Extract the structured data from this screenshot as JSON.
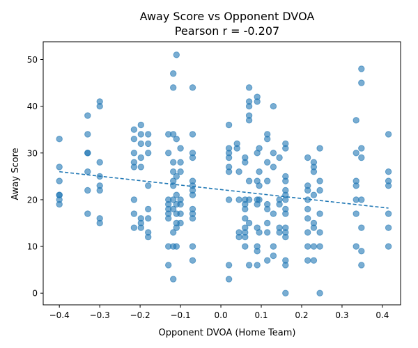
{
  "chart_data": {
    "type": "scatter",
    "title": "Away Score vs Opponent DVOA",
    "subtitle": "Pearson r = -0.207",
    "xlabel": "Opponent DVOA (Home Team)",
    "ylabel": "Away Score",
    "xlim": [
      -0.44,
      0.445
    ],
    "ylim": [
      -2.5,
      53.8
    ],
    "x_ticks": [
      -0.4,
      -0.3,
      -0.2,
      -0.1,
      0.0,
      0.1,
      0.2,
      0.3,
      0.4
    ],
    "x_tick_labels": [
      "−0.4",
      "−0.3",
      "−0.2",
      "−0.1",
      "0.0",
      "0.1",
      "0.2",
      "0.3",
      "0.4"
    ],
    "y_ticks": [
      0,
      10,
      20,
      30,
      40,
      50
    ],
    "y_tick_labels": [
      "0",
      "10",
      "20",
      "30",
      "40",
      "50"
    ],
    "grid": false,
    "colors": {
      "points": "#1f77b4",
      "trendline": "#1f77b4"
    },
    "series": [
      {
        "points": [
          [
            -0.4,
            33
          ],
          [
            -0.4,
            27
          ],
          [
            -0.4,
            24
          ],
          [
            -0.4,
            21
          ],
          [
            -0.4,
            21
          ],
          [
            -0.4,
            20
          ],
          [
            -0.4,
            19
          ],
          [
            -0.33,
            38
          ],
          [
            -0.33,
            34
          ],
          [
            -0.33,
            30
          ],
          [
            -0.33,
            30
          ],
          [
            -0.33,
            26
          ],
          [
            -0.33,
            22
          ],
          [
            -0.33,
            17
          ],
          [
            -0.3,
            41
          ],
          [
            -0.3,
            40
          ],
          [
            -0.3,
            28
          ],
          [
            -0.3,
            25
          ],
          [
            -0.3,
            23
          ],
          [
            -0.3,
            22
          ],
          [
            -0.3,
            16
          ],
          [
            -0.3,
            15
          ],
          [
            -0.215,
            35
          ],
          [
            -0.215,
            33
          ],
          [
            -0.215,
            30
          ],
          [
            -0.215,
            28
          ],
          [
            -0.215,
            27
          ],
          [
            -0.215,
            20
          ],
          [
            -0.215,
            17
          ],
          [
            -0.215,
            14
          ],
          [
            -0.198,
            36
          ],
          [
            -0.198,
            34
          ],
          [
            -0.198,
            32
          ],
          [
            -0.198,
            29
          ],
          [
            -0.198,
            27
          ],
          [
            -0.198,
            16
          ],
          [
            -0.198,
            15
          ],
          [
            -0.198,
            14
          ],
          [
            -0.18,
            34
          ],
          [
            -0.18,
            32
          ],
          [
            -0.18,
            30
          ],
          [
            -0.18,
            23
          ],
          [
            -0.18,
            18
          ],
          [
            -0.18,
            16
          ],
          [
            -0.18,
            13
          ],
          [
            -0.18,
            12
          ],
          [
            -0.13,
            34
          ],
          [
            -0.13,
            30
          ],
          [
            -0.13,
            20
          ],
          [
            -0.13,
            19
          ],
          [
            -0.13,
            18
          ],
          [
            -0.13,
            17
          ],
          [
            -0.13,
            16
          ],
          [
            -0.13,
            10
          ],
          [
            -0.13,
            6
          ],
          [
            -0.118,
            47
          ],
          [
            -0.118,
            44
          ],
          [
            -0.118,
            34
          ],
          [
            -0.118,
            28
          ],
          [
            -0.118,
            26
          ],
          [
            -0.118,
            24
          ],
          [
            -0.118,
            23
          ],
          [
            -0.118,
            20
          ],
          [
            -0.118,
            18
          ],
          [
            -0.118,
            13
          ],
          [
            -0.118,
            10
          ],
          [
            -0.118,
            3
          ],
          [
            -0.11,
            51
          ],
          [
            -0.11,
            33
          ],
          [
            -0.11,
            25
          ],
          [
            -0.11,
            21
          ],
          [
            -0.11,
            19
          ],
          [
            -0.11,
            17
          ],
          [
            -0.11,
            15
          ],
          [
            -0.11,
            14
          ],
          [
            -0.11,
            10
          ],
          [
            -0.1,
            31
          ],
          [
            -0.1,
            28
          ],
          [
            -0.1,
            26
          ],
          [
            -0.1,
            20
          ],
          [
            -0.1,
            19
          ],
          [
            -0.1,
            17
          ],
          [
            -0.1,
            15
          ],
          [
            -0.07,
            44
          ],
          [
            -0.07,
            34
          ],
          [
            -0.07,
            30
          ],
          [
            -0.07,
            29
          ],
          [
            -0.07,
            24
          ],
          [
            -0.07,
            23
          ],
          [
            -0.07,
            22
          ],
          [
            -0.07,
            21
          ],
          [
            -0.07,
            18
          ],
          [
            -0.07,
            17
          ],
          [
            -0.07,
            16
          ],
          [
            -0.07,
            10
          ],
          [
            -0.07,
            7
          ],
          [
            0.02,
            36
          ],
          [
            0.02,
            31
          ],
          [
            0.02,
            30
          ],
          [
            0.02,
            29
          ],
          [
            0.02,
            27
          ],
          [
            0.02,
            26
          ],
          [
            0.02,
            20
          ],
          [
            0.02,
            6
          ],
          [
            0.02,
            3
          ],
          [
            0.04,
            32
          ],
          [
            0.04,
            31
          ],
          [
            0.045,
            26
          ],
          [
            0.045,
            20
          ],
          [
            0.045,
            13
          ],
          [
            0.045,
            12
          ],
          [
            0.06,
            29
          ],
          [
            0.06,
            28
          ],
          [
            0.06,
            20
          ],
          [
            0.06,
            19
          ],
          [
            0.06,
            18
          ],
          [
            0.06,
            16
          ],
          [
            0.06,
            14
          ],
          [
            0.06,
            13
          ],
          [
            0.06,
            12
          ],
          [
            0.06,
            10
          ],
          [
            0.07,
            44
          ],
          [
            0.07,
            41
          ],
          [
            0.07,
            40
          ],
          [
            0.07,
            38
          ],
          [
            0.07,
            37
          ],
          [
            0.07,
            24
          ],
          [
            0.07,
            20
          ],
          [
            0.07,
            15
          ],
          [
            0.07,
            6
          ],
          [
            0.09,
            42
          ],
          [
            0.09,
            41
          ],
          [
            0.09,
            30
          ],
          [
            0.09,
            24
          ],
          [
            0.09,
            20
          ],
          [
            0.09,
            19
          ],
          [
            0.09,
            14
          ],
          [
            0.09,
            10
          ],
          [
            0.09,
            9
          ],
          [
            0.09,
            6
          ],
          [
            0.095,
            31
          ],
          [
            0.095,
            26
          ],
          [
            0.095,
            23
          ],
          [
            0.095,
            20
          ],
          [
            0.095,
            13
          ],
          [
            0.115,
            34
          ],
          [
            0.115,
            33
          ],
          [
            0.115,
            28
          ],
          [
            0.115,
            24
          ],
          [
            0.115,
            19
          ],
          [
            0.115,
            18
          ],
          [
            0.115,
            15
          ],
          [
            0.115,
            13
          ],
          [
            0.115,
            7
          ],
          [
            0.13,
            40
          ],
          [
            0.13,
            30
          ],
          [
            0.13,
            27
          ],
          [
            0.13,
            17
          ],
          [
            0.13,
            10
          ],
          [
            0.13,
            8
          ],
          [
            0.145,
            29
          ],
          [
            0.145,
            20
          ],
          [
            0.145,
            19
          ],
          [
            0.145,
            14
          ],
          [
            0.145,
            13
          ],
          [
            0.16,
            32
          ],
          [
            0.16,
            31
          ],
          [
            0.16,
            25
          ],
          [
            0.16,
            24
          ],
          [
            0.16,
            22
          ],
          [
            0.16,
            21
          ],
          [
            0.16,
            20
          ],
          [
            0.16,
            18
          ],
          [
            0.16,
            17
          ],
          [
            0.16,
            14
          ],
          [
            0.16,
            13
          ],
          [
            0.16,
            12
          ],
          [
            0.16,
            7
          ],
          [
            0.16,
            6
          ],
          [
            0.16,
            0
          ],
          [
            0.215,
            29
          ],
          [
            0.215,
            23
          ],
          [
            0.215,
            22
          ],
          [
            0.215,
            20
          ],
          [
            0.215,
            18
          ],
          [
            0.215,
            16
          ],
          [
            0.215,
            13
          ],
          [
            0.215,
            10
          ],
          [
            0.215,
            7
          ],
          [
            0.23,
            28
          ],
          [
            0.23,
            27
          ],
          [
            0.23,
            26
          ],
          [
            0.23,
            21
          ],
          [
            0.23,
            15
          ],
          [
            0.23,
            14
          ],
          [
            0.23,
            10
          ],
          [
            0.23,
            7
          ],
          [
            0.245,
            31
          ],
          [
            0.245,
            24
          ],
          [
            0.245,
            22
          ],
          [
            0.245,
            17
          ],
          [
            0.245,
            13
          ],
          [
            0.245,
            10
          ],
          [
            0.245,
            0
          ],
          [
            0.335,
            37
          ],
          [
            0.335,
            30
          ],
          [
            0.335,
            24
          ],
          [
            0.335,
            23
          ],
          [
            0.335,
            20
          ],
          [
            0.335,
            17
          ],
          [
            0.335,
            10
          ],
          [
            0.348,
            48
          ],
          [
            0.348,
            45
          ],
          [
            0.348,
            31
          ],
          [
            0.348,
            29
          ],
          [
            0.348,
            20
          ],
          [
            0.348,
            14
          ],
          [
            0.348,
            9
          ],
          [
            0.348,
            6
          ],
          [
            0.415,
            34
          ],
          [
            0.415,
            26
          ],
          [
            0.415,
            24
          ],
          [
            0.415,
            23
          ],
          [
            0.415,
            17
          ],
          [
            0.415,
            14
          ],
          [
            0.415,
            10
          ]
        ]
      }
    ],
    "trendline": {
      "style": "dashed",
      "x": [
        -0.4,
        0.415
      ],
      "y": [
        26.0,
        18.2
      ]
    }
  }
}
